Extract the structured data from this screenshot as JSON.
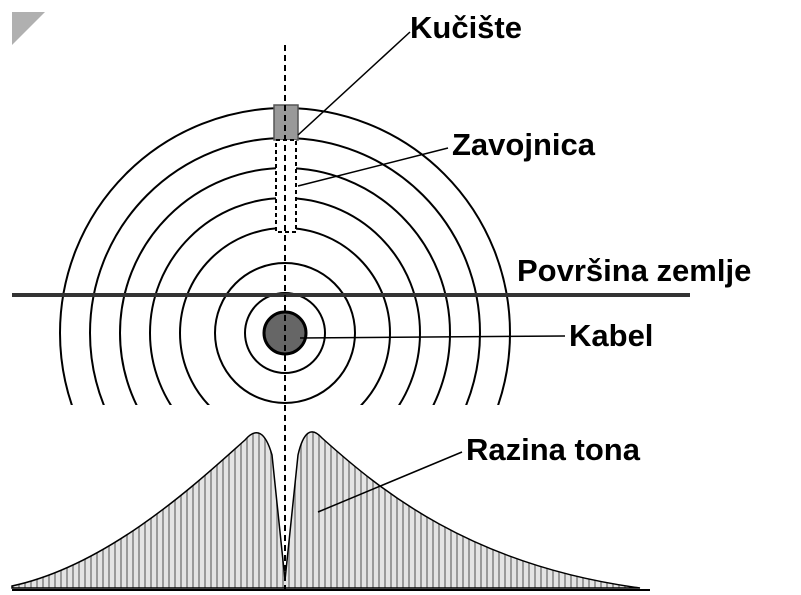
{
  "labels": {
    "housing": "Kučište",
    "coil": "Zavojnica",
    "surface": "Površina zemlje",
    "cable": "Kabel",
    "tone": "Razina tona"
  }
}
